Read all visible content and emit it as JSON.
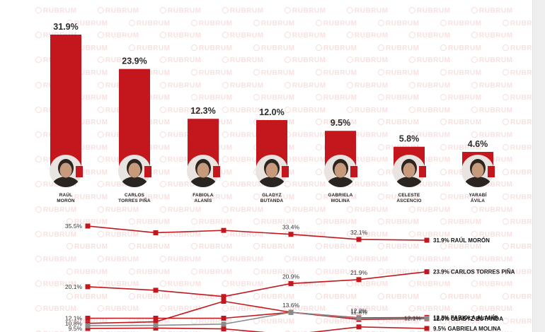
{
  "watermark_text": "RUBRUM",
  "chart_data": [
    {
      "type": "bar",
      "categories": [
        "RAÚL MORÓN",
        "CARLOS TORRES PIÑA",
        "FABIOLA ALANÍS",
        "GLADYZ BUTANDA",
        "GABRIELA MOLINA",
        "CELESTE ASCENCIO",
        "YARABÍ ÁVILA"
      ],
      "name_lines": [
        [
          "RAÚL",
          "MORÓN"
        ],
        [
          "CARLOS",
          "TORRES PIÑA"
        ],
        [
          "FABIOLA",
          "ALANÍS"
        ],
        [
          "GLADYZ",
          "BUTANDA"
        ],
        [
          "GABRIELA",
          "MOLINA"
        ],
        [
          "CELESTE",
          "ASCENCIO"
        ],
        [
          "YARABÍ",
          "ÁVILA"
        ]
      ],
      "values": [
        31.9,
        23.9,
        12.3,
        12.0,
        9.5,
        5.8,
        4.6
      ],
      "value_labels": [
        "31.9%",
        "23.9%",
        "12.3%",
        "12.0%",
        "9.5%",
        "5.8%",
        "4.6%"
      ],
      "ylim": [
        0,
        31.9
      ],
      "bar_color": "#c4171d",
      "avatar_fill": "#2b2521",
      "avatar_skin": "#c79a7c",
      "grid": false,
      "legend": "none"
    },
    {
      "type": "line",
      "x_count": 6,
      "ylim": [
        9.5,
        35.5
      ],
      "series": [
        {
          "values": [
            35.5,
            33.8,
            34.4,
            33.4,
            32.1,
            31.9
          ],
          "color": "#c4171d",
          "labels": {
            "0": "35.5%",
            "3": "33.4%",
            "4": "32.1%"
          },
          "end_label": "31.9% RAÚL MORÓN"
        },
        {
          "values": [
            20.1,
            19.2,
            17.6,
            20.9,
            21.9,
            23.9
          ],
          "color": "#c4171d",
          "labels": {
            "0": "20.1%",
            "3": "20.9%",
            "4": "21.9%"
          },
          "end_label": "23.9% CARLOS TORRES PIÑA"
        },
        {
          "values": [
            12.1,
            12.1,
            12.1,
            13.6,
            12.2,
            12.3
          ],
          "color": "#c4171d",
          "labels": {
            "0": "12.1%",
            "3": "13.6%",
            "4": "12.2%"
          },
          "end_label": "12.3% FABIOLA ALANÍS"
        },
        {
          "values": [
            10.8,
            11.2,
            16.4,
            13.6,
            11.8,
            12.0
          ],
          "color": "#c4171d",
          "labels": {
            "0": "10.8%",
            "4": "11.8%"
          },
          "end_label": "12.0% GLADYZ BUTANDA"
        },
        {
          "values": [
            9.5,
            9.6,
            9.4,
            7.9,
            9.9,
            9.5
          ],
          "color": "#c4171d",
          "labels": {
            "0": "9.5%"
          },
          "end_label": "9.5% GABRIELA MOLINA"
        },
        {
          "values": [
            10.2,
            10.3,
            10.6,
            13.6,
            12.1,
            12.1
          ],
          "color": "#8a8a8a",
          "labels": {
            "5": "12.1%"
          },
          "end_label": ""
        }
      ],
      "grid": false,
      "legend": "right"
    }
  ]
}
